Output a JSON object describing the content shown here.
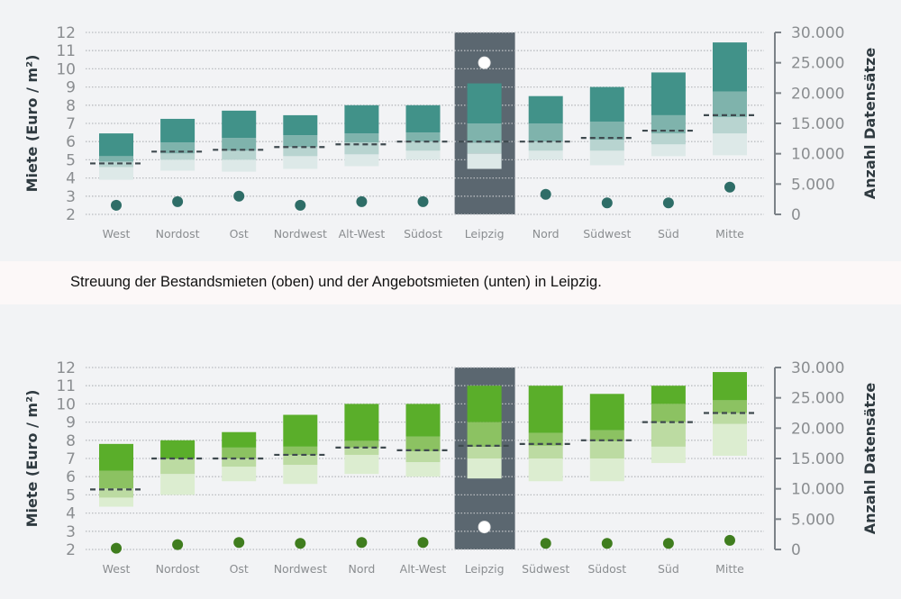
{
  "caption": "Streuung der Bestandsmieten (oben) und der Angebotsmieten (unten) in Leipzig.",
  "chart_data": [
    {
      "type": "bar",
      "subtype": "floating-stacked-range",
      "ylabel": "Miete (Euro / m²)",
      "y2label": "Anzahl Datensätze",
      "ylim": [
        2,
        12
      ],
      "y2lim": [
        0,
        30000
      ],
      "yticks": [
        "2",
        "3",
        "4",
        "5",
        "6",
        "7",
        "8",
        "9",
        "10",
        "11",
        "12"
      ],
      "y2ticks": [
        "0",
        "5.000",
        "10.000",
        "15.000",
        "20.000",
        "25.000",
        "30.000"
      ],
      "grid": true,
      "highlight": "Leipzig",
      "colors": {
        "band1": "#dde9e8",
        "band2": "#b8d4d0",
        "band3": "#7fb3ac",
        "band4": "#419289",
        "dot": "#2e6d67",
        "highlight_bg": "#5b6770"
      },
      "categories": [
        "West",
        "Nordost",
        "Ost",
        "Nordwest",
        "Alt-West",
        "Südost",
        "Leipzig",
        "Nord",
        "Südwest",
        "Süd",
        "Mitte"
      ],
      "bands": [
        [
          3.9,
          4.6,
          4.9,
          5.2,
          6.45
        ],
        [
          4.4,
          5.0,
          5.35,
          5.95,
          7.25
        ],
        [
          4.35,
          5.0,
          5.5,
          6.2,
          7.7
        ],
        [
          4.5,
          5.2,
          5.7,
          6.35,
          7.45
        ],
        [
          4.65,
          5.3,
          5.95,
          6.45,
          8.0
        ],
        [
          5.0,
          5.5,
          6.0,
          6.5,
          8.0
        ],
        [
          4.5,
          5.35,
          5.95,
          7.0,
          9.2
        ],
        [
          5.0,
          5.5,
          6.0,
          7.0,
          8.5
        ],
        [
          4.7,
          5.5,
          6.1,
          7.1,
          9.0
        ],
        [
          5.2,
          5.85,
          6.45,
          7.45,
          9.8
        ],
        [
          5.25,
          6.45,
          7.35,
          8.75,
          11.45
        ]
      ],
      "median": [
        4.8,
        5.45,
        5.55,
        5.7,
        5.85,
        6.0,
        6.0,
        6.0,
        6.2,
        6.6,
        7.45
      ],
      "count": [
        1500,
        2100,
        3000,
        1500,
        2100,
        2100,
        25000,
        3300,
        1900,
        1900,
        4500
      ]
    },
    {
      "type": "bar",
      "subtype": "floating-stacked-range",
      "ylabel": "Miete (Euro / m²)",
      "y2label": "Anzahl Datensätze",
      "ylim": [
        2,
        12
      ],
      "y2lim": [
        0,
        30000
      ],
      "yticks": [
        "2",
        "3",
        "4",
        "5",
        "6",
        "7",
        "8",
        "9",
        "10",
        "11",
        "12"
      ],
      "y2ticks": [
        "0",
        "5.000",
        "10.000",
        "15.000",
        "20.000",
        "25.000",
        "30.000"
      ],
      "grid": true,
      "highlight": "Leipzig",
      "colors": {
        "band1": "#dcedd0",
        "band2": "#bcdba2",
        "band3": "#8cc262",
        "band4": "#5aae2a",
        "dot": "#3f7d1e",
        "highlight_bg": "#5b6770"
      },
      "categories": [
        "West",
        "Nordost",
        "Ost",
        "Nordwest",
        "Nord",
        "Alt-West",
        "Leipzig",
        "Südwest",
        "Südost",
        "Süd",
        "Mitte"
      ],
      "bands": [
        [
          4.35,
          4.85,
          5.35,
          6.33,
          7.8
        ],
        [
          5.0,
          6.15,
          6.98,
          6.98,
          8.0
        ],
        [
          5.75,
          6.55,
          7.0,
          7.6,
          8.45
        ],
        [
          5.6,
          6.65,
          7.2,
          7.65,
          9.4
        ],
        [
          6.15,
          7.2,
          7.6,
          7.97,
          10.0
        ],
        [
          6.0,
          6.8,
          7.4,
          8.2,
          10.0
        ],
        [
          5.9,
          7.0,
          7.65,
          9.0,
          11.0
        ],
        [
          5.75,
          7.0,
          7.7,
          8.4,
          11.0
        ],
        [
          5.75,
          7.0,
          7.95,
          8.55,
          10.55
        ],
        [
          6.75,
          7.65,
          9.0,
          10.0,
          11.0
        ],
        [
          7.15,
          8.9,
          9.5,
          10.2,
          11.75
        ]
      ],
      "median": [
        5.3,
        7.0,
        7.0,
        7.2,
        7.6,
        7.45,
        7.7,
        7.8,
        8.0,
        9.0,
        9.5
      ],
      "count": [
        200,
        800,
        1150,
        1000,
        1150,
        1150,
        3700,
        1000,
        1000,
        1000,
        1500
      ]
    }
  ]
}
